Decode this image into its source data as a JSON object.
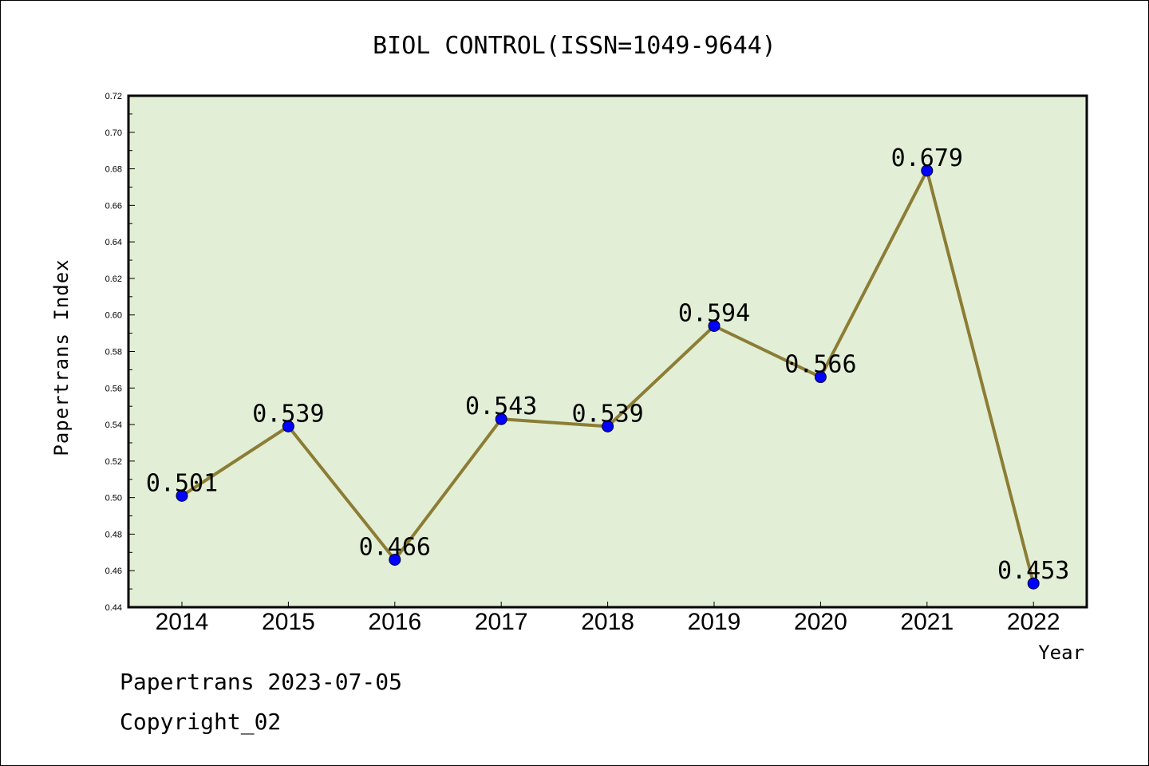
{
  "chart_data": {
    "type": "line",
    "title": "BIOL CONTROL(ISSN=1049-9644)",
    "xlabel": "Year",
    "ylabel": "Papertrans Index",
    "categories": [
      "2014",
      "2015",
      "2016",
      "2017",
      "2018",
      "2019",
      "2020",
      "2021",
      "2022"
    ],
    "series": [
      {
        "values": [
          0.501,
          0.539,
          0.466,
          0.543,
          0.539,
          0.594,
          0.566,
          0.679,
          0.453
        ]
      }
    ],
    "data_labels": [
      "0.501",
      "0.539",
      "0.466",
      "0.543",
      "0.539",
      "0.594",
      "0.566",
      "0.679",
      "0.453"
    ],
    "ylim": [
      0.44,
      0.72
    ],
    "yticks": [
      "0.44",
      "0.46",
      "0.48",
      "0.50",
      "0.52",
      "0.54",
      "0.56",
      "0.58",
      "0.60",
      "0.62",
      "0.64",
      "0.66",
      "0.68",
      "0.70",
      "0.72"
    ],
    "grid": false,
    "colors": {
      "plot_background": "#e2efd6",
      "line": "#8c7d35",
      "marker": "#0000ff"
    }
  },
  "footer": {
    "line1": "Papertrans 2023-07-05",
    "line2": "Copyright_02"
  }
}
